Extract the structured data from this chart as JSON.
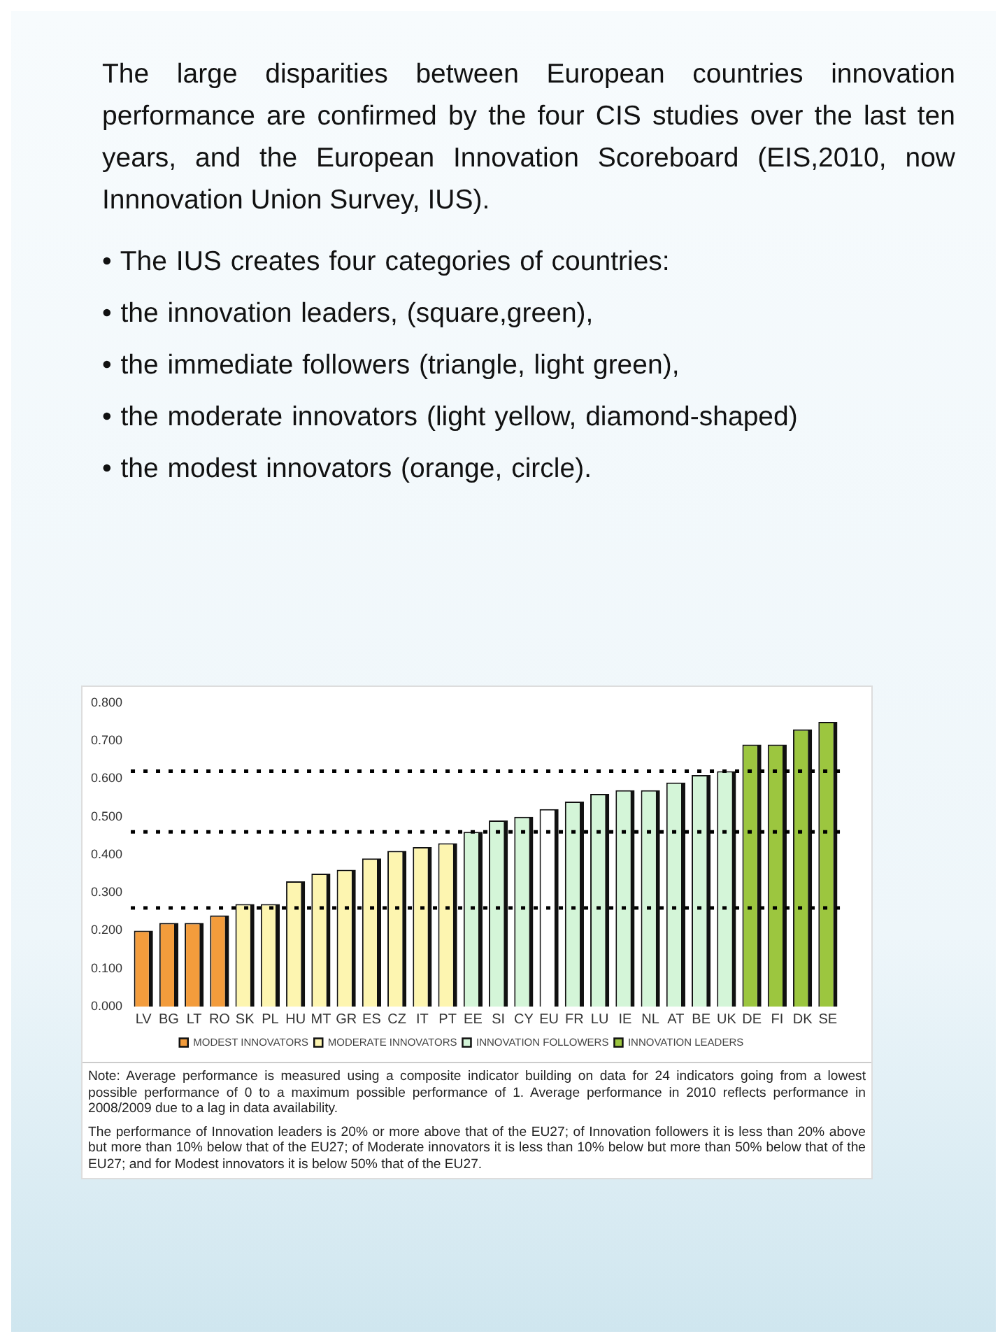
{
  "chart_data": {
    "type": "bar",
    "title": "The large disparities between European countries innovation performance are confirmed by the four CIS studies over the last ten years, and the European Innovation Scoreboard (EIS,2010, now Innnovation Union Survey, IUS).",
    "categories": [
      "LV",
      "BG",
      "LT",
      "RO",
      "SK",
      "PL",
      "HU",
      "MT",
      "GR",
      "ES",
      "CZ",
      "IT",
      "PT",
      "EE",
      "SI",
      "CY",
      "EU",
      "FR",
      "LU",
      "IE",
      "NL",
      "AT",
      "BE",
      "UK",
      "DE",
      "FI",
      "DK",
      "SE"
    ],
    "series": [
      {
        "name": "MODEST INNOVATORS",
        "color": "#f39c3c",
        "values": [
          0.2,
          0.22,
          0.22,
          0.24,
          null,
          null,
          null,
          null,
          null,
          null,
          null,
          null,
          null,
          null,
          null,
          null,
          null,
          null,
          null,
          null,
          null,
          null,
          null,
          null,
          null,
          null,
          null,
          null
        ]
      },
      {
        "name": "MODERATE INNOVATORS",
        "color": "#fdf5b0",
        "values": [
          null,
          null,
          null,
          null,
          0.27,
          0.27,
          0.33,
          0.35,
          0.36,
          0.39,
          0.41,
          0.42,
          0.43,
          null,
          null,
          null,
          null,
          null,
          null,
          null,
          null,
          null,
          null,
          null,
          null,
          null,
          null,
          null
        ]
      },
      {
        "name": "INNOVATION FOLLOWERS",
        "color": "#d4f5d8",
        "values": [
          null,
          null,
          null,
          null,
          null,
          null,
          null,
          null,
          null,
          null,
          null,
          null,
          null,
          0.46,
          0.49,
          0.5,
          null,
          0.54,
          0.56,
          0.57,
          0.57,
          0.59,
          0.61,
          0.62,
          null,
          null,
          null,
          null
        ]
      },
      {
        "name": "INNOVATION LEADERS",
        "color": "#9cc63f",
        "values": [
          null,
          null,
          null,
          null,
          null,
          null,
          null,
          null,
          null,
          null,
          null,
          null,
          null,
          null,
          null,
          null,
          null,
          null,
          null,
          null,
          null,
          null,
          null,
          null,
          0.69,
          0.69,
          0.73,
          0.75
        ]
      },
      {
        "color": "#ffffff",
        "values": [
          null,
          null,
          null,
          null,
          null,
          null,
          null,
          null,
          null,
          null,
          null,
          null,
          null,
          null,
          null,
          null,
          0.52,
          null,
          null,
          null,
          null,
          null,
          null,
          null,
          null,
          null,
          null,
          null
        ]
      }
    ],
    "ylim": [
      0,
      0.8
    ],
    "yticks": [
      {
        "value": 0,
        "label": "0.000"
      },
      {
        "value": 0.1,
        "label": "0.100"
      },
      {
        "value": 0.2,
        "label": "0.200"
      },
      {
        "value": 0.3,
        "label": "0.300"
      },
      {
        "value": 0.4,
        "label": "0.400"
      },
      {
        "value": 0.5,
        "label": "0.500"
      },
      {
        "value": 0.6,
        "label": "0.600"
      },
      {
        "value": 0.7,
        "label": "0.700"
      },
      {
        "value": 0.8,
        "label": "0.800"
      }
    ],
    "ref_lines": [
      {
        "axis": "y",
        "value": 0.62,
        "color": "#000000",
        "line_style": "dotted"
      },
      {
        "axis": "y",
        "value": 0.46,
        "color": "#000000",
        "line_style": "dotted"
      },
      {
        "axis": "y",
        "value": 0.26,
        "color": "#000000",
        "line_style": "dotted"
      }
    ],
    "legend": "bottom",
    "annotations": [
      "• The IUS creates four categories of countries:",
      "• the innovation leaders, (square,green),",
      "• the immediate followers (triangle, light green),",
      "• the moderate innovators (light yellow, diamond-shaped)",
      "• the modest innovators (orange, circle).",
      "Note: Average performance is measured using a composite indicator building on data for 24 indicators going from a lowest possible performance of 0 to a maximum possible performance of 1. Average performance in 2010 reflects performance in 2008/2009 due to a lag in data availability.",
      "The performance of Innovation leaders is 20% or more above that of the EU27; of Innovation followers it is less than 20% above but more than 10% below that of the EU27; of Moderate innovators it is less than 10% below but more than 50% below that of the EU27; and for Modest innovators it is below 50% that of the EU27."
    ]
  }
}
